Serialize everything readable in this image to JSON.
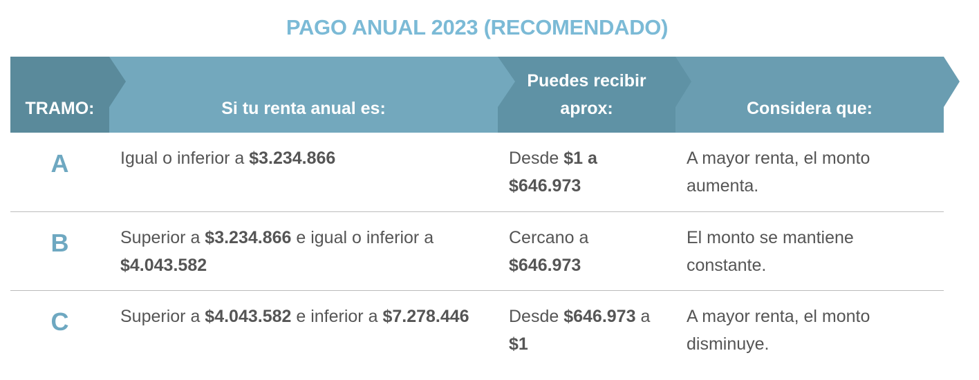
{
  "title": "PAGO ANUAL 2023 (RECOMENDADO)",
  "table": {
    "columns": [
      "TRAMO:",
      "Si tu renta anual es:",
      "Puedes recibir aprox:",
      "Considera que:"
    ],
    "rows": [
      {
        "tramo": "A",
        "renta": [
          {
            "text": "Igual o inferior a "
          },
          {
            "text": "$3.234.866",
            "bold": true
          }
        ],
        "monto": [
          {
            "text": "Desde "
          },
          {
            "text": "$1 a $646.973",
            "bold": true
          }
        ],
        "considera": "A mayor renta, el monto aumenta."
      },
      {
        "tramo": "B",
        "renta": [
          {
            "text": "Superior a "
          },
          {
            "text": "$3.234.866",
            "bold": true
          },
          {
            "text": " e igual o inferior a "
          },
          {
            "text": "$4.043.582",
            "bold": true
          }
        ],
        "monto": [
          {
            "text": "Cercano a "
          },
          {
            "text": "$646.973",
            "bold": true
          }
        ],
        "considera": "El monto se mantiene constante."
      },
      {
        "tramo": "C",
        "renta": [
          {
            "text": "Superior a "
          },
          {
            "text": "$4.043.582",
            "bold": true
          },
          {
            "text": " e inferior a "
          },
          {
            "text": "$7.278.446",
            "bold": true
          }
        ],
        "monto": [
          {
            "text": "Desde "
          },
          {
            "text": "$646.973",
            "bold": true
          },
          {
            "text": " a "
          },
          {
            "text": "$1",
            "bold": true
          }
        ],
        "considera": "A mayor renta, el monto disminuye."
      }
    ]
  }
}
